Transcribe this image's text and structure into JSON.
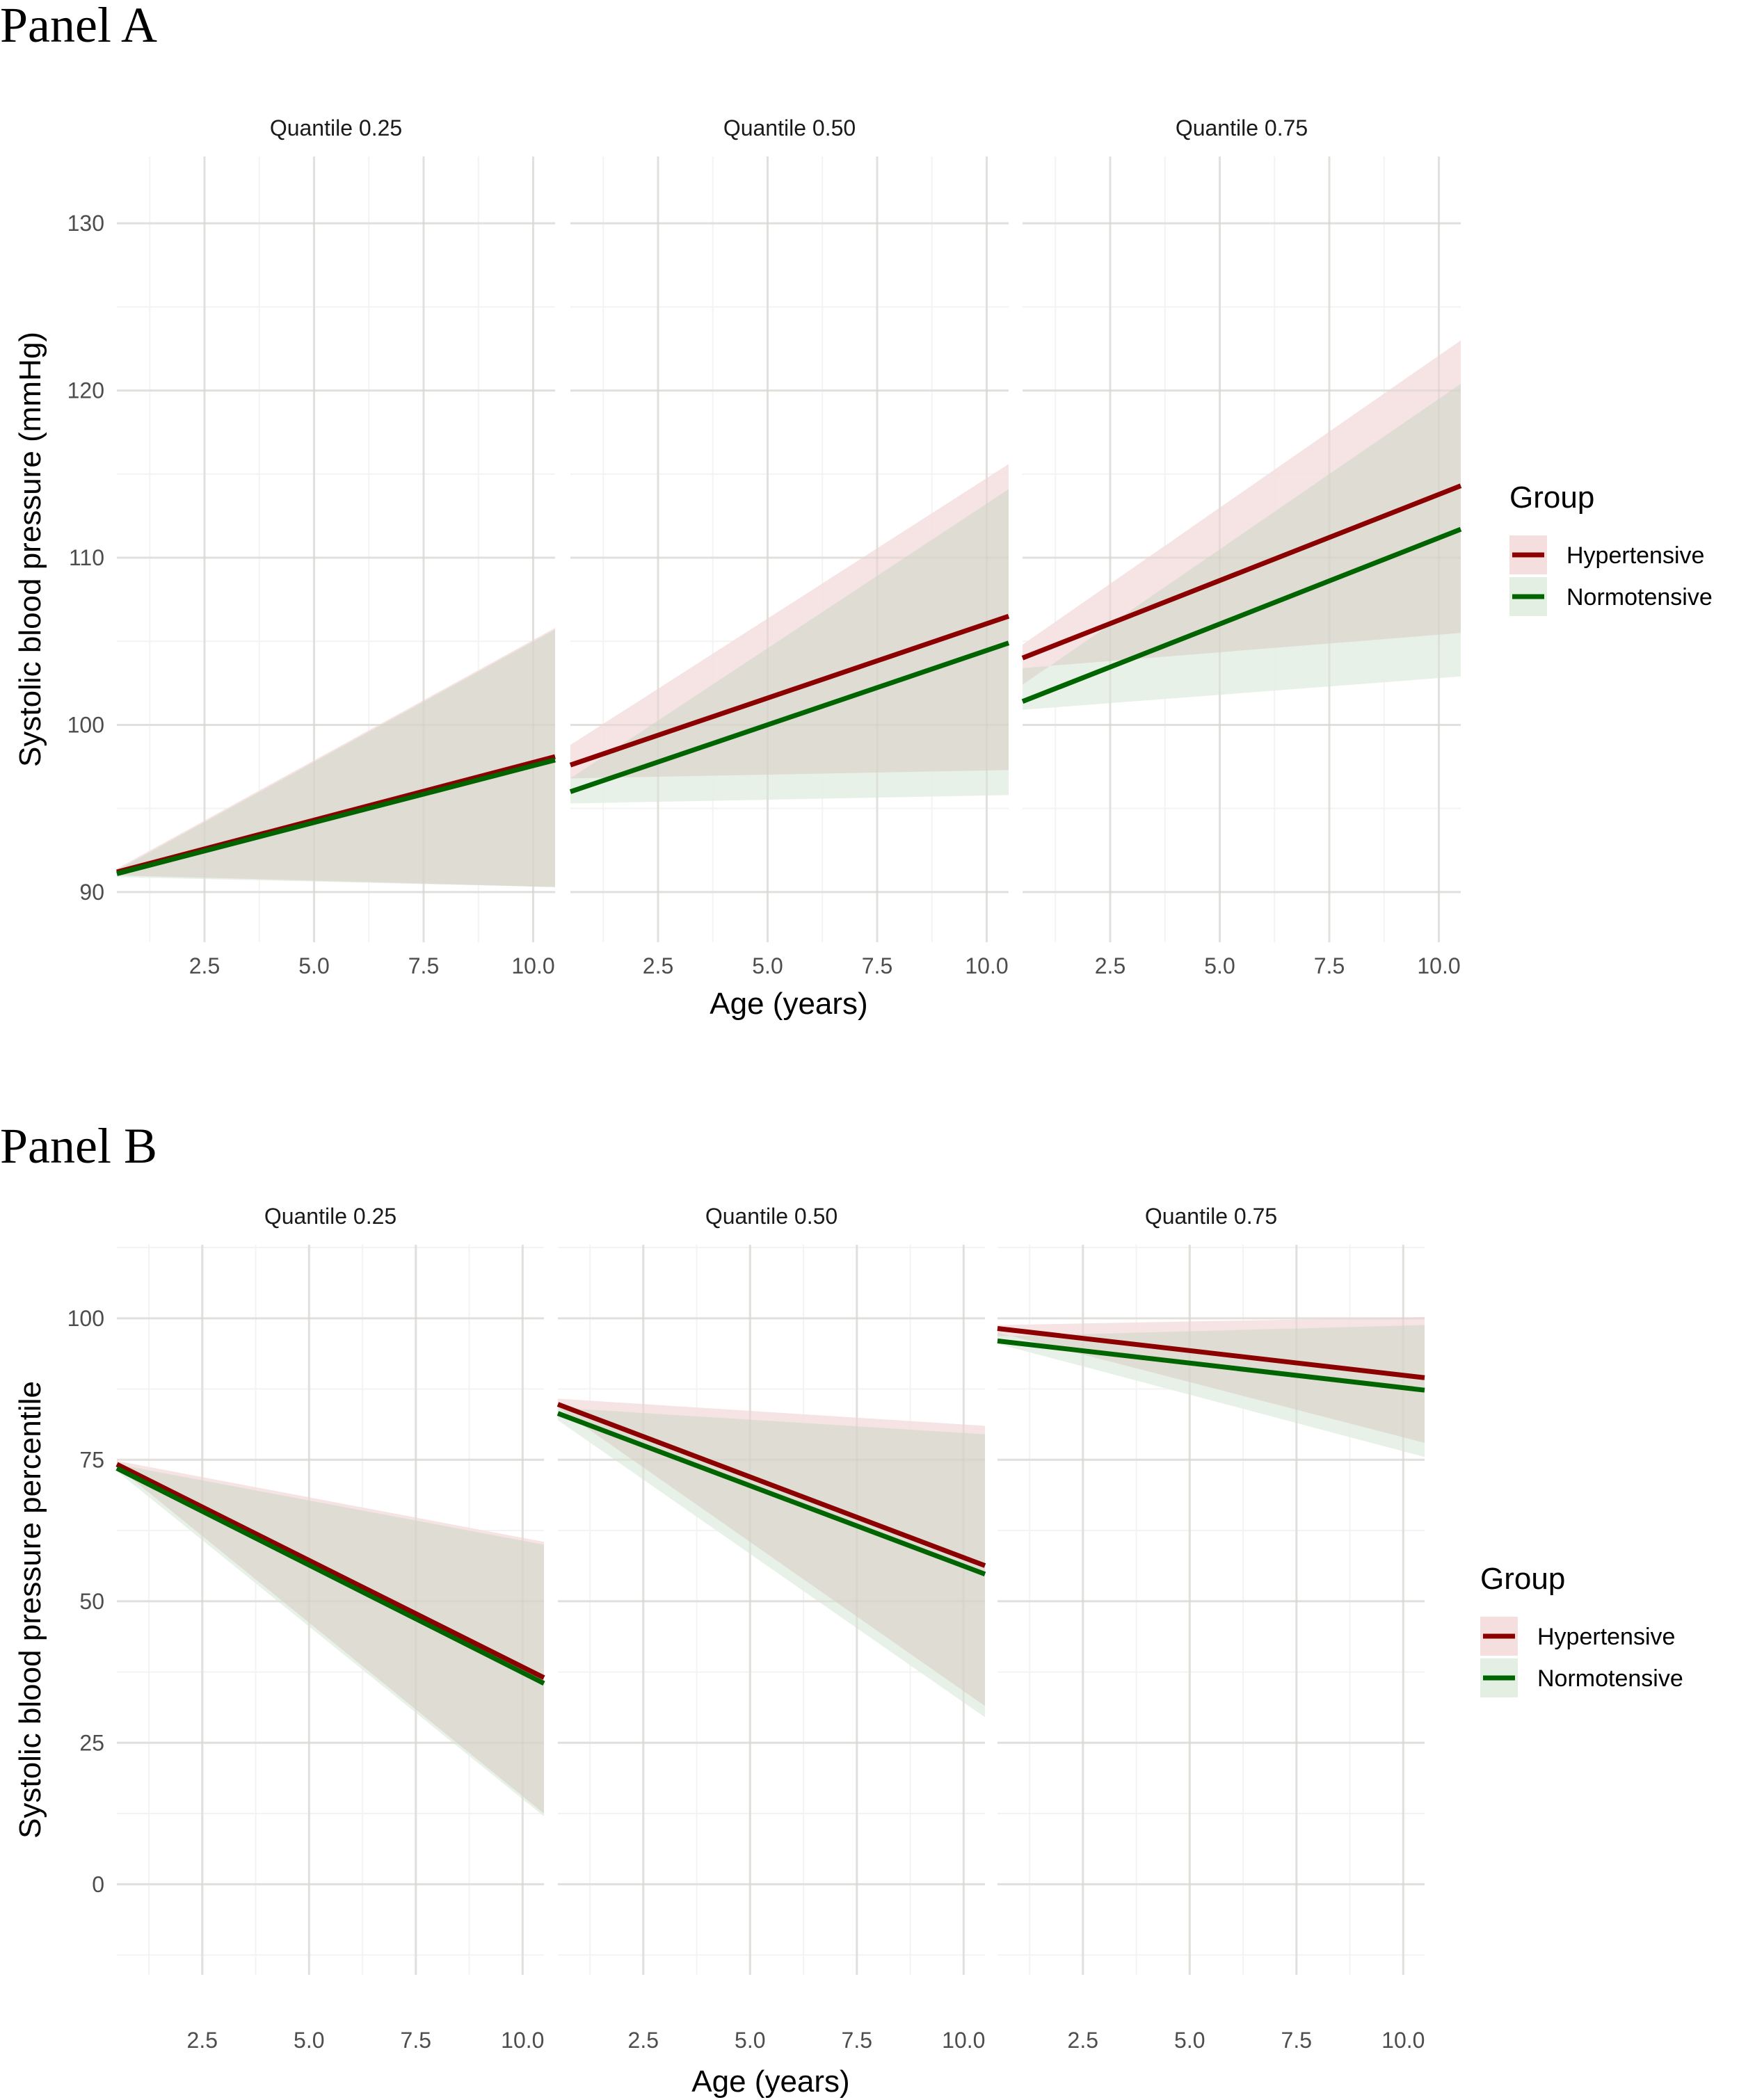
{
  "colors": {
    "hypertensive_line": "#8b0000",
    "normotensive_line": "#006400",
    "hypertensive_ribbon": "#f4dede",
    "normotensive_ribbon": "#e3efe3",
    "ribbon_overlap": "#dedbd2"
  },
  "chart_data": [
    {
      "id": "panelA",
      "panel_label": "Panel A",
      "type": "line",
      "xlabel": "Age (years)",
      "ylabel": "Systolic blood pressure (mmHg)",
      "xlim": [
        0.5,
        10.5
      ],
      "ylim": [
        87,
        134
      ],
      "x_ticks": [
        2.5,
        5.0,
        7.5,
        10.0
      ],
      "x_tick_labels": [
        "2.5",
        "5.0",
        "7.5",
        "10.0"
      ],
      "y_ticks": [
        90,
        100,
        110,
        120,
        130
      ],
      "y_tick_labels": [
        "90",
        "100",
        "110",
        "120",
        "130"
      ],
      "grid": true,
      "legend": {
        "title": "Group",
        "position": "right",
        "entries": [
          "Hypertensive",
          "Normotensive"
        ]
      },
      "facets": [
        {
          "title": "Quantile 0.25",
          "series": [
            {
              "name": "Hypertensive",
              "x": [
                0.5,
                10.5
              ],
              "y": [
                91.2,
                98.1
              ],
              "lower": [
                91.0,
                90.3
              ],
              "upper": [
                91.4,
                105.8
              ]
            },
            {
              "name": "Normotensive",
              "x": [
                0.5,
                10.5
              ],
              "y": [
                91.1,
                97.9
              ],
              "lower": [
                90.9,
                90.3
              ],
              "upper": [
                91.3,
                105.7
              ]
            }
          ]
        },
        {
          "title": "Quantile 0.50",
          "series": [
            {
              "name": "Hypertensive",
              "x": [
                0.5,
                10.5
              ],
              "y": [
                97.6,
                106.5
              ],
              "lower": [
                96.8,
                97.3
              ],
              "upper": [
                98.8,
                115.6
              ]
            },
            {
              "name": "Normotensive",
              "x": [
                0.5,
                10.5
              ],
              "y": [
                96.0,
                104.9
              ],
              "lower": [
                95.3,
                95.8
              ],
              "upper": [
                96.8,
                114.1
              ]
            }
          ]
        },
        {
          "title": "Quantile 0.75",
          "series": [
            {
              "name": "Hypertensive",
              "x": [
                0.5,
                10.5
              ],
              "y": [
                104.0,
                114.3
              ],
              "lower": [
                103.4,
                105.5
              ],
              "upper": [
                104.8,
                123.0
              ]
            },
            {
              "name": "Normotensive",
              "x": [
                0.5,
                10.5
              ],
              "y": [
                101.4,
                111.7
              ],
              "lower": [
                100.9,
                102.9
              ],
              "upper": [
                102.4,
                120.4
              ]
            }
          ]
        }
      ]
    },
    {
      "id": "panelB",
      "panel_label": "Panel B",
      "type": "line",
      "xlabel": "Age (years)",
      "ylabel": "Systolic blood pressure percentile",
      "xlim": [
        0.5,
        10.5
      ],
      "ylim": [
        -16,
        113
      ],
      "x_ticks": [
        2.5,
        5.0,
        7.5,
        10.0
      ],
      "x_tick_labels": [
        "2.5",
        "5.0",
        "7.5",
        "10.0"
      ],
      "y_ticks": [
        0,
        25,
        50,
        75,
        100
      ],
      "y_tick_labels": [
        "0",
        "25",
        "50",
        "75",
        "100"
      ],
      "grid": true,
      "legend": {
        "title": "Group",
        "position": "right",
        "entries": [
          "Hypertensive",
          "Normotensive"
        ]
      },
      "facets": [
        {
          "title": "Quantile 0.25",
          "series": [
            {
              "name": "Hypertensive",
              "x": [
                0.5,
                10.5
              ],
              "y": [
                74.2,
                36.5
              ],
              "lower": [
                73.8,
                12.5
              ],
              "upper": [
                74.8,
                60.5
              ]
            },
            {
              "name": "Normotensive",
              "x": [
                0.5,
                10.5
              ],
              "y": [
                73.5,
                35.5
              ],
              "lower": [
                73.0,
                12.0
              ],
              "upper": [
                74.2,
                60.0
              ]
            }
          ]
        },
        {
          "title": "Quantile 0.50",
          "series": [
            {
              "name": "Hypertensive",
              "x": [
                0.5,
                10.5
              ],
              "y": [
                84.8,
                56.3
              ],
              "lower": [
                84.2,
                31.5
              ],
              "upper": [
                85.8,
                81.0
              ]
            },
            {
              "name": "Normotensive",
              "x": [
                0.5,
                10.5
              ],
              "y": [
                83.2,
                54.8
              ],
              "lower": [
                82.0,
                29.5
              ],
              "upper": [
                84.2,
                79.5
              ]
            }
          ]
        },
        {
          "title": "Quantile 0.75",
          "series": [
            {
              "name": "Hypertensive",
              "x": [
                0.5,
                10.5
              ],
              "y": [
                98.2,
                89.5
              ],
              "lower": [
                97.5,
                78.0
              ],
              "upper": [
                98.8,
                100.2
              ]
            },
            {
              "name": "Normotensive",
              "x": [
                0.5,
                10.5
              ],
              "y": [
                96.0,
                87.3
              ],
              "lower": [
                95.5,
                75.5
              ],
              "upper": [
                96.8,
                98.8
              ]
            }
          ]
        }
      ]
    }
  ]
}
